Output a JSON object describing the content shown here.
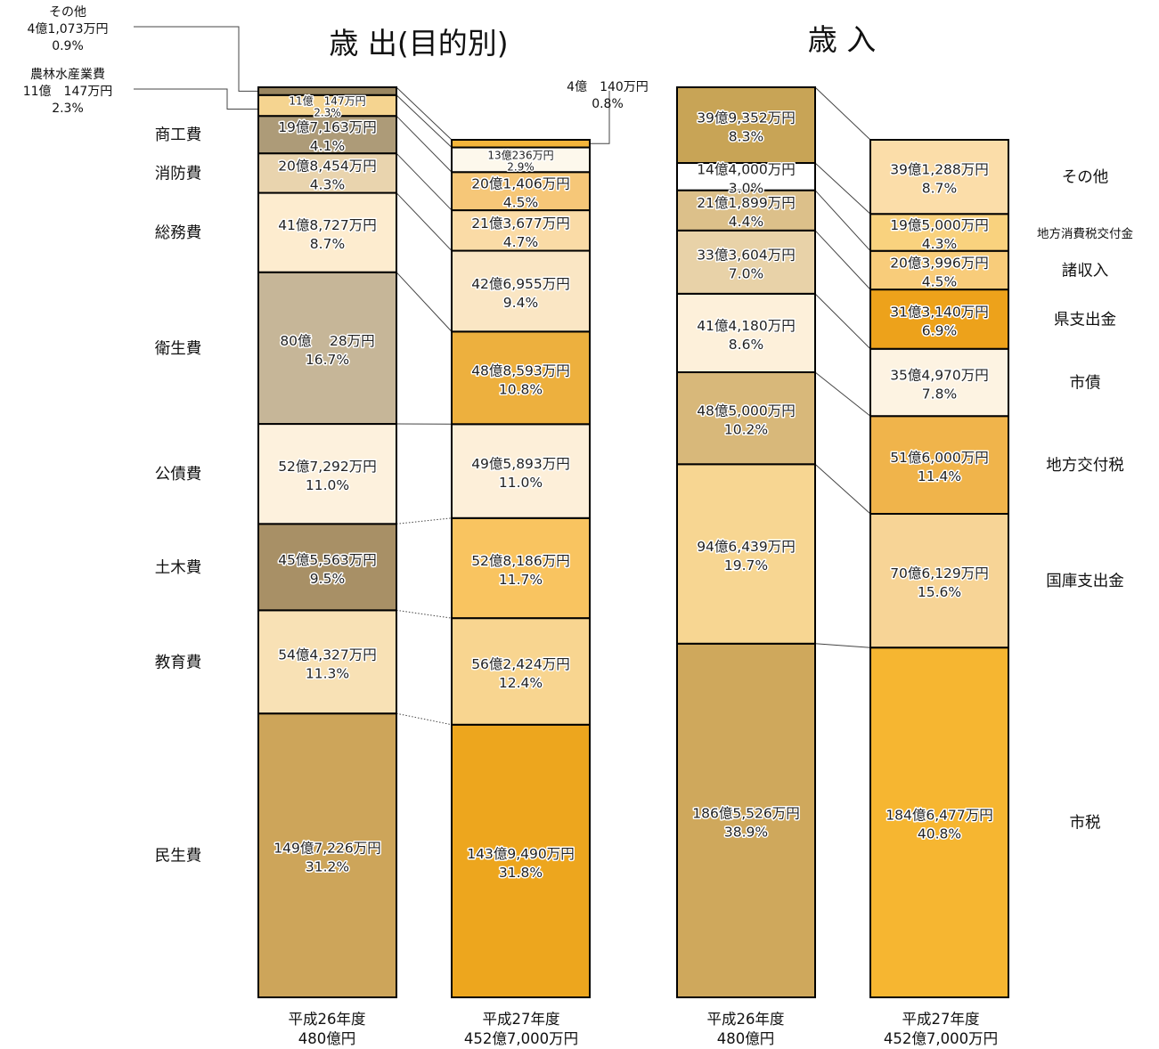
{
  "chart_data": [
    {
      "type": "bar",
      "stacked": true,
      "title": "歳 出(目的別)",
      "categories": [
        "民生費",
        "教育費",
        "土木費",
        "公債費",
        "衛生費",
        "総務費",
        "消防費",
        "商工費",
        "農林水産業費",
        "その他"
      ],
      "series": [
        {
          "name": "平成26年度",
          "total_label": "480億円",
          "values": [
            149.7226,
            54.4327,
            45.5563,
            52.7292,
            80.0028,
            41.8727,
            20.8454,
            19.7163,
            11.0147,
            4.1073
          ],
          "labels": [
            "149億7,226万円",
            "54億4,327万円",
            "45億5,563万円",
            "52億7,292万円",
            "80億　 28万円",
            "41億8,727万円",
            "20億8,454万円",
            "19億7,163万円",
            "11億　147万円",
            "4億1,073万円"
          ],
          "percents": [
            "31.2%",
            "11.3%",
            "9.5%",
            "11.0%",
            "16.7%",
            "8.7%",
            "4.3%",
            "4.1%",
            "2.3%",
            "0.9%"
          ],
          "colors": [
            "#cda55a",
            "#f8e1b5",
            "#a89066",
            "#fdf1dd",
            "#c6b698",
            "#fdeccf",
            "#e9d4ae",
            "#ad9b78",
            "#f5d490",
            "#9a8660"
          ]
        },
        {
          "name": "平成27年度",
          "total_label": "452億7,000万円",
          "values": [
            143.949,
            56.2424,
            52.8186,
            49.5893,
            48.8593,
            42.6955,
            21.3677,
            20.1406,
            13.0236,
            4.014
          ],
          "labels": [
            "143億9,490万円",
            "56億2,424万円",
            "52億8,186万円",
            "49億5,893万円",
            "48億8,593万円",
            "42億6,955万円",
            "21億3,677万円",
            "20億1,406万円",
            "13億236万円",
            "4億　140万円"
          ],
          "percents": [
            "31.8%",
            "12.4%",
            "11.7%",
            "11.0%",
            "10.8%",
            "9.4%",
            "4.7%",
            "4.5%",
            "2.9%",
            "0.8%"
          ],
          "colors": [
            "#eda61e",
            "#f8d590",
            "#f9c460",
            "#fdefd9",
            "#edb03e",
            "#fae6c4",
            "#fadba6",
            "#f6c778",
            "#fdf8ec",
            "#f3b53a"
          ]
        }
      ]
    },
    {
      "type": "bar",
      "stacked": true,
      "title": "歳 入",
      "categories": [
        "市税",
        "国庫支出金",
        "地方交付税",
        "市債",
        "県支出金",
        "諸収入",
        "地方消費税交付金",
        "その他"
      ],
      "series": [
        {
          "name": "平成26年度",
          "total_label": "480億円",
          "segments": [
            {
              "value": 186.5526,
              "label": "186億5,526万円",
              "percent": "38.9%",
              "color": "#cfa85c"
            },
            {
              "value": 94.6439,
              "label": "94億6,439万円",
              "percent": "19.7%",
              "color": "#f7d692"
            },
            {
              "value": 48.5,
              "label": "48億5,000万円",
              "percent": "10.2%",
              "color": "#d8b87a"
            },
            {
              "value": 41.418,
              "label": "41億4,180万円",
              "percent": "8.6%",
              "color": "#fdf0da"
            },
            {
              "value": 33.3604,
              "label": "33億3,604万円",
              "percent": "7.0%",
              "color": "#e8d2a8"
            },
            {
              "value": 21.1899,
              "label": "21億1,899万円",
              "percent": "4.4%",
              "color": "#dcc08a"
            },
            {
              "value": 14.4,
              "label": "14億4,000万円",
              "percent": "3.0%",
              "color": "#ffffff"
            },
            {
              "value": 39.9352,
              "label": "39億9,352万円",
              "percent": "8.3%",
              "color": "#c8a456"
            }
          ]
        },
        {
          "name": "平成27年度",
          "total_label": "452億7,000万円",
          "segments": [
            {
              "value": 184.6477,
              "label": "184億6,477万円",
              "percent": "40.8%",
              "color": "#f6b631"
            },
            {
              "value": 70.6129,
              "label": "70億6,129万円",
              "percent": "15.6%",
              "color": "#f7d496"
            },
            {
              "value": 51.6,
              "label": "51億6,000万円",
              "percent": "11.4%",
              "color": "#f0b44b"
            },
            {
              "value": 35.497,
              "label": "35億4,970万円",
              "percent": "7.8%",
              "color": "#fdf3e2"
            },
            {
              "value": 31.314,
              "label": "31億3,140万円",
              "percent": "6.9%",
              "color": "#eda21b"
            },
            {
              "value": 20.3996,
              "label": "20億3,996万円",
              "percent": "4.5%",
              "color": "#f8cc7a"
            },
            {
              "value": 19.5,
              "label": "19億5,000万円",
              "percent": "4.3%",
              "color": "#f9d27e"
            },
            {
              "value": 39.1288,
              "label": "39億1,288万円",
              "percent": "8.7%",
              "color": "#fbdda9"
            }
          ]
        }
      ]
    }
  ]
}
